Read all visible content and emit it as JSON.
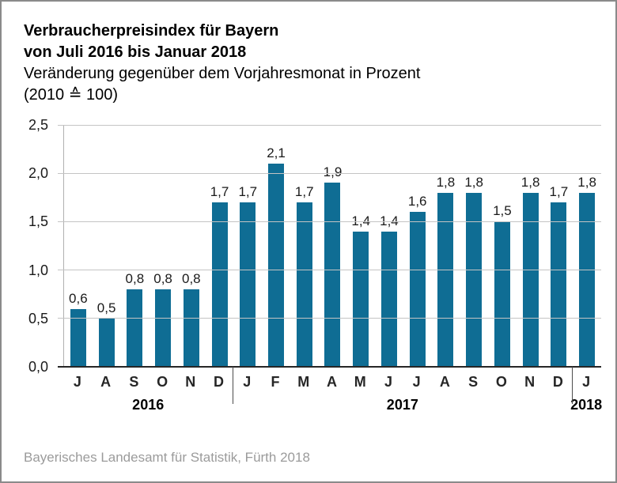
{
  "header": {
    "title_line1": "Verbraucherpreisindex für Bayern",
    "title_line2": "von Juli 2016 bis Januar 2018",
    "subtitle_line1": "Veränderung gegenüber dem Vorjahresmonat in Prozent",
    "subtitle_line2": "(2010 ≙ 100)"
  },
  "footer": {
    "source": "Bayerisches Landesamt für Statistik, Fürth 2018"
  },
  "chart_data": {
    "type": "bar",
    "title": "Verbraucherpreisindex für Bayern von Juli 2016 bis Januar 2018",
    "subtitle": "Veränderung gegenüber dem Vorjahresmonat in Prozent (2010 ≙ 100)",
    "xlabel": "",
    "ylabel": "",
    "ylim": [
      0.0,
      2.5
    ],
    "grid": true,
    "bar_color": "#0f6d94",
    "categories": [
      "J",
      "A",
      "S",
      "O",
      "N",
      "D",
      "J",
      "F",
      "M",
      "A",
      "M",
      "J",
      "J",
      "A",
      "S",
      "O",
      "N",
      "D",
      "J"
    ],
    "values": [
      0.6,
      0.5,
      0.8,
      0.8,
      0.8,
      1.7,
      1.7,
      2.1,
      1.7,
      1.9,
      1.4,
      1.4,
      1.6,
      1.8,
      1.8,
      1.5,
      1.8,
      1.7,
      1.8
    ],
    "value_labels": [
      "0,6",
      "0,5",
      "0,8",
      "0,8",
      "0,8",
      "1,7",
      "1,7",
      "2,1",
      "1,7",
      "1,9",
      "1,4",
      "1,4",
      "1,6",
      "1,8",
      "1,8",
      "1,5",
      "1,8",
      "1,7",
      "1,8"
    ],
    "yticks": [
      0.0,
      0.5,
      1.0,
      1.5,
      2.0,
      2.5
    ],
    "ytick_labels": [
      "0,0",
      "0,5",
      "1,0",
      "1,5",
      "2,0",
      "2,5"
    ],
    "year_groups": [
      {
        "label": "2016",
        "start": 0,
        "end": 5
      },
      {
        "label": "2017",
        "start": 6,
        "end": 17
      },
      {
        "label": "2018",
        "start": 18,
        "end": 18
      }
    ]
  }
}
